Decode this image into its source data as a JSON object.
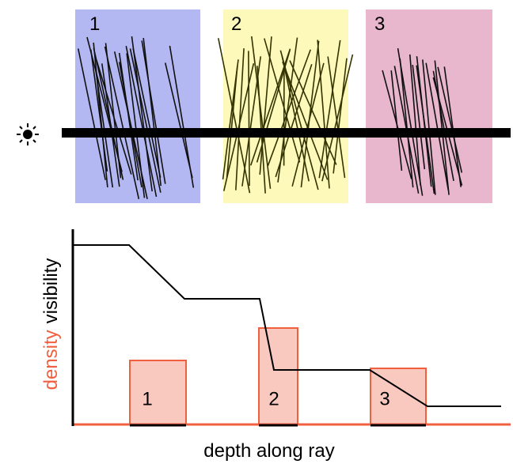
{
  "boxes": [
    {
      "label": "1"
    },
    {
      "label": "2"
    },
    {
      "label": "3"
    }
  ],
  "plot": {
    "y_label_density": "density",
    "y_label_visibility": "visibility",
    "x_label": "depth along ray",
    "bar_labels": [
      "1",
      "2",
      "3"
    ]
  }
}
